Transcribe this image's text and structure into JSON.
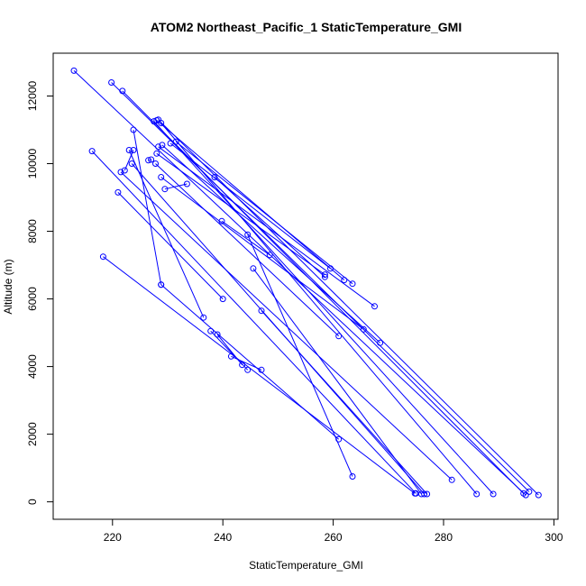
{
  "chart_data": {
    "type": "line",
    "title": "ATOM2 Northeast_Pacific_1 StaticTemperature_GMI",
    "xlabel": "StaticTemperature_GMI",
    "ylabel": "Altitude (m)",
    "xlim": [
      210,
      300
    ],
    "ylim": [
      0,
      13000
    ],
    "xticks": [
      220,
      240,
      260,
      280,
      300
    ],
    "yticks": [
      0,
      2000,
      4000,
      6000,
      8000,
      10000,
      12000
    ],
    "grid": false,
    "line_color": "#0000ff",
    "marker": "open-circle",
    "series": [
      {
        "values": [
          [
            213,
            12750
          ],
          [
            294.9,
            200
          ]
        ]
      },
      {
        "values": [
          [
            219.8,
            12400
          ],
          [
            295.5,
            300
          ]
        ]
      },
      {
        "values": [
          [
            221.8,
            12150
          ],
          [
            294.5,
            250
          ]
        ]
      },
      {
        "values": [
          [
            228.3,
            11300
          ],
          [
            297.2,
            200
          ]
        ]
      },
      {
        "values": [
          [
            227.5,
            11250
          ],
          [
            289,
            230
          ]
        ]
      },
      {
        "values": [
          [
            228.8,
            11200
          ],
          [
            286,
            230
          ]
        ]
      },
      {
        "values": [
          [
            228,
            11280
          ],
          [
            262,
            6560
          ]
        ]
      },
      {
        "values": [
          [
            223.8,
            11000
          ],
          [
            228.8,
            6420
          ]
        ]
      },
      {
        "values": [
          [
            222.2,
            9800
          ],
          [
            223.8,
            10400
          ]
        ]
      },
      {
        "values": [
          [
            230.5,
            10600
          ],
          [
            259.5,
            6900
          ]
        ]
      },
      {
        "values": [
          [
            231.5,
            10650
          ],
          [
            263.5,
            6450
          ]
        ]
      },
      {
        "values": [
          [
            228.3,
            10500
          ],
          [
            267.5,
            5780
          ]
        ]
      },
      {
        "values": [
          [
            229,
            10550
          ],
          [
            268.5,
            4700
          ]
        ]
      },
      {
        "values": [
          [
            223,
            10400
          ],
          [
            236.5,
            5450
          ]
        ]
      },
      {
        "values": [
          [
            226.5,
            10100
          ],
          [
            227,
            10120
          ]
        ]
      },
      {
        "values": [
          [
            228,
            10300
          ],
          [
            258.5,
            6720
          ]
        ]
      },
      {
        "values": [
          [
            216.3,
            10370
          ],
          [
            275,
            250
          ]
        ]
      },
      {
        "values": [
          [
            227.8,
            10000
          ],
          [
            261,
            4900
          ]
        ]
      },
      {
        "values": [
          [
            223.5,
            10000
          ],
          [
            276.5,
            230
          ]
        ]
      },
      {
        "values": [
          [
            221.5,
            9750
          ],
          [
            281.5,
            650
          ]
        ]
      },
      {
        "values": [
          [
            228.8,
            9600
          ],
          [
            265.5,
            5100
          ]
        ]
      },
      {
        "values": [
          [
            229.5,
            9250
          ],
          [
            233.5,
            9400
          ]
        ]
      },
      {
        "values": [
          [
            238.5,
            9600
          ],
          [
            258.5,
            6650
          ]
        ]
      },
      {
        "values": [
          [
            239.8,
            8300
          ],
          [
            248.5,
            7300
          ]
        ]
      },
      {
        "values": [
          [
            244.5,
            7900
          ],
          [
            263.5,
            750
          ]
        ]
      },
      {
        "values": [
          [
            245.5,
            6900
          ],
          [
            276,
            230
          ]
        ]
      },
      {
        "values": [
          [
            221,
            9150
          ],
          [
            240,
            6000
          ]
        ]
      },
      {
        "values": [
          [
            247,
            5650
          ],
          [
            277,
            230
          ]
        ]
      },
      {
        "values": [
          [
            228.8,
            6420
          ],
          [
            261,
            1850
          ]
        ]
      },
      {
        "values": [
          [
            218.3,
            7250
          ],
          [
            274.8,
            250
          ]
        ]
      },
      {
        "values": [
          [
            237.8,
            5050
          ],
          [
            244.5,
            3900
          ]
        ]
      },
      {
        "values": [
          [
            239,
            4950
          ],
          [
            243.5,
            4050
          ]
        ]
      },
      {
        "values": [
          [
            241.5,
            4300
          ],
          [
            247,
            3900
          ]
        ]
      }
    ]
  }
}
